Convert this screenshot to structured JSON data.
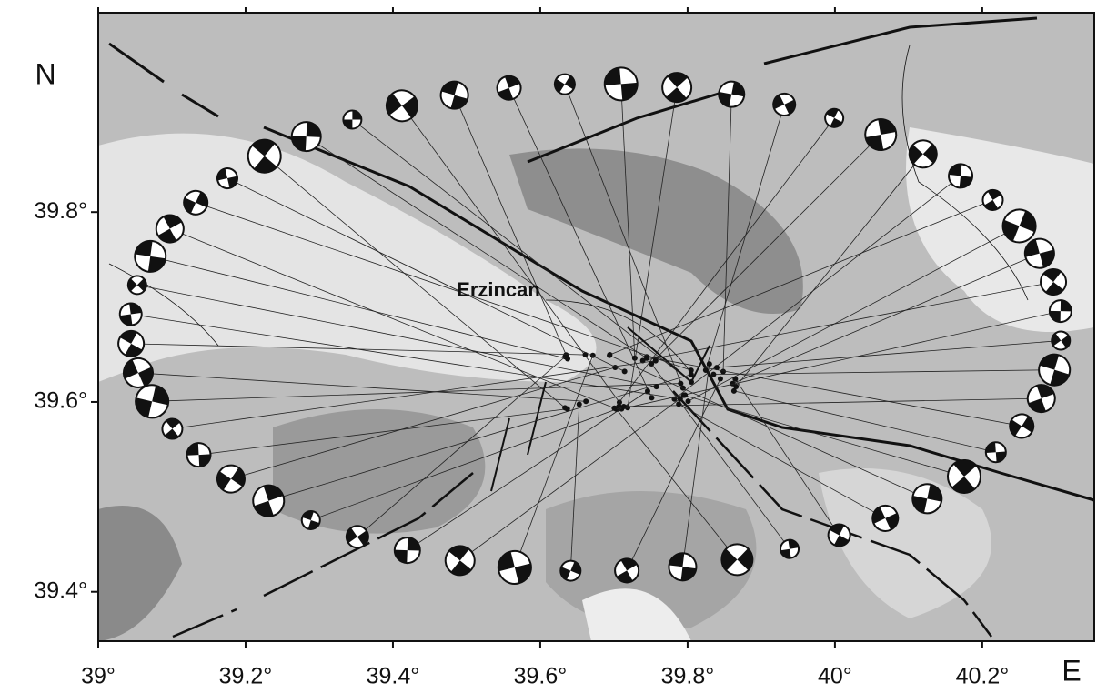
{
  "map": {
    "north_label": "N",
    "east_label": "E",
    "place_label": "Erzincan",
    "xlim": [
      39,
      40.352
    ],
    "ylim": [
      39.348,
      40.01
    ],
    "xticks": [
      {
        "value": 39,
        "label": "39°"
      },
      {
        "value": 39.2,
        "label": "39.2°"
      },
      {
        "value": 39.4,
        "label": "39.4°"
      },
      {
        "value": 39.6,
        "label": "39.6°"
      },
      {
        "value": 39.8,
        "label": "39.8°"
      },
      {
        "value": 40,
        "label": "40°"
      },
      {
        "value": 40.2,
        "label": "40.2°"
      }
    ],
    "yticks": [
      {
        "value": 39.4,
        "label": "39.4°"
      },
      {
        "value": 39.6,
        "label": "39.6°"
      },
      {
        "value": 39.8,
        "label": "39.8°"
      }
    ]
  }
}
